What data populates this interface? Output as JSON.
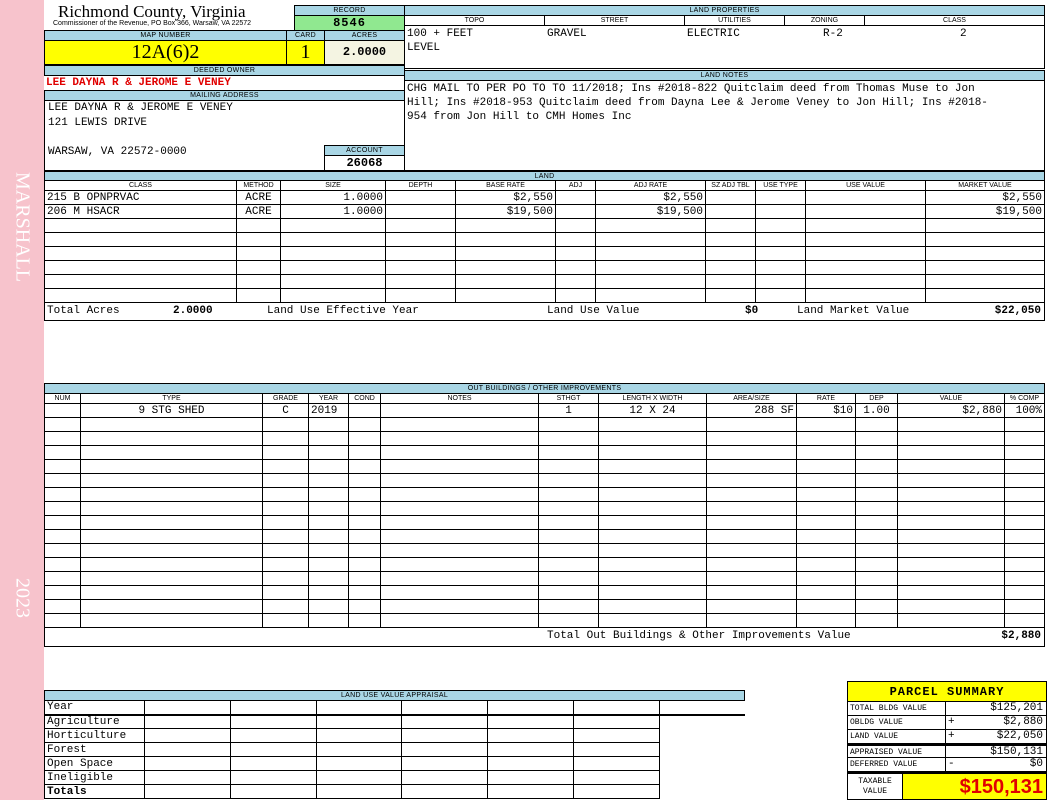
{
  "side": {
    "top": "MARSHALL",
    "bottom": "2023"
  },
  "header": {
    "county": "Richmond County, Virginia",
    "subtitle": "Commissioner of the Revenue, PO Box 366, Warsaw, VA 22572"
  },
  "record": {
    "label": "RECORD",
    "value": "8546"
  },
  "map": {
    "label": "MAP NUMBER",
    "value": "12A(6)2"
  },
  "card": {
    "label": "CARD",
    "value": "1"
  },
  "acres": {
    "label": "ACRES",
    "value": "2.0000"
  },
  "owner": {
    "label": "DEEDED OWNER",
    "value": "LEE DAYNA R & JEROME E VENEY"
  },
  "mailing": {
    "label": "MAILING ADDRESS",
    "line1": "LEE DAYNA R & JEROME E VENEY",
    "line2": "121 LEWIS DRIVE",
    "line3": "WARSAW, VA 22572-0000"
  },
  "account": {
    "label": "ACCOUNT",
    "value": "26068"
  },
  "land_properties": {
    "label": "LAND PROPERTIES",
    "headers": [
      "TOPO",
      "STREET",
      "UTILITIES",
      "ZONING",
      "CLASS"
    ],
    "values": [
      "100 + FEET",
      "GRAVEL",
      "ELECTRIC",
      "R-2",
      "2"
    ],
    "topo2": "LEVEL"
  },
  "land_notes": {
    "label": "LAND NOTES",
    "text": "CHG MAIL TO PER PO TO TO 11/2018; Ins #2018-822 Quitclaim deed from Thomas Muse to Jon Hill; Ins #2018-953 Quitclaim deed from Dayna Lee & Jerome Veney to Jon Hill; Ins #2018-954 from Jon Hill to CMH Homes Inc"
  },
  "land": {
    "label": "LAND",
    "headers": [
      "CLASS",
      "METHOD",
      "SIZE",
      "DEPTH",
      "BASE RATE",
      "ADJ",
      "ADJ RATE",
      "SZ ADJ TBL",
      "USE TYPE",
      "USE VALUE",
      "MARKET VALUE"
    ],
    "rows": [
      [
        "215 B OPNPRVAC",
        "ACRE",
        "1.0000",
        "",
        "$2,550",
        "",
        "$2,550",
        "",
        "",
        "",
        "$2,550"
      ],
      [
        "206 M HSACR",
        "ACRE",
        "1.0000",
        "",
        "$19,500",
        "",
        "$19,500",
        "",
        "",
        "",
        "$19,500"
      ]
    ],
    "totals": {
      "acres_label": "Total Acres",
      "acres": "2.0000",
      "eff_year_label": "Land Use Effective Year",
      "use_value_label": "Land Use Value",
      "use_value": "$0",
      "market_label": "Land Market Value",
      "market": "$22,050"
    }
  },
  "outbuildings": {
    "label": "OUT BUILDINGS / OTHER IMPROVEMENTS",
    "headers": [
      "NUM",
      "TYPE",
      "GRADE",
      "YEAR",
      "COND",
      "NOTES",
      "STHGT",
      "LENGTH X WIDTH",
      "AREA/SIZE",
      "RATE",
      "DEP",
      "VALUE",
      "% COMP"
    ],
    "rows": [
      [
        "",
        "9 STG SHED",
        "C",
        "2019",
        "",
        "",
        "1",
        "12 X 24",
        "288 SF",
        "$10",
        "1.00",
        "$2,880",
        "100%"
      ]
    ],
    "total_label": "Total Out Buildings & Other Improvements Value",
    "total": "$2,880"
  },
  "luva": {
    "label": "LAND USE VALUE APPRAISAL",
    "rows": [
      "Year",
      "Agriculture",
      "Horticulture",
      "Forest",
      "Open Space",
      "Ineligible",
      "Totals"
    ]
  },
  "summary": {
    "title": "PARCEL SUMMARY",
    "rows": [
      {
        "label": "TOTAL BLDG VALUE",
        "op": "",
        "value": "$125,201"
      },
      {
        "label": "OBLDG VALUE",
        "op": "+",
        "value": "$2,880"
      },
      {
        "label": "LAND VALUE",
        "op": "+",
        "value": "$22,050"
      },
      {
        "label": "APPRAISED VALUE",
        "op": "",
        "value": "$150,131"
      },
      {
        "label": "DEFERRED VALUE",
        "op": "-",
        "value": "$0"
      }
    ],
    "taxable_label": "TAXABLE VALUE",
    "taxable": "$150,131"
  },
  "colors": {
    "band": "#a9d6e5",
    "yellow": "#ffff00",
    "green": "#90e890",
    "pink": "#f7c3cc",
    "red": "#e00000"
  }
}
